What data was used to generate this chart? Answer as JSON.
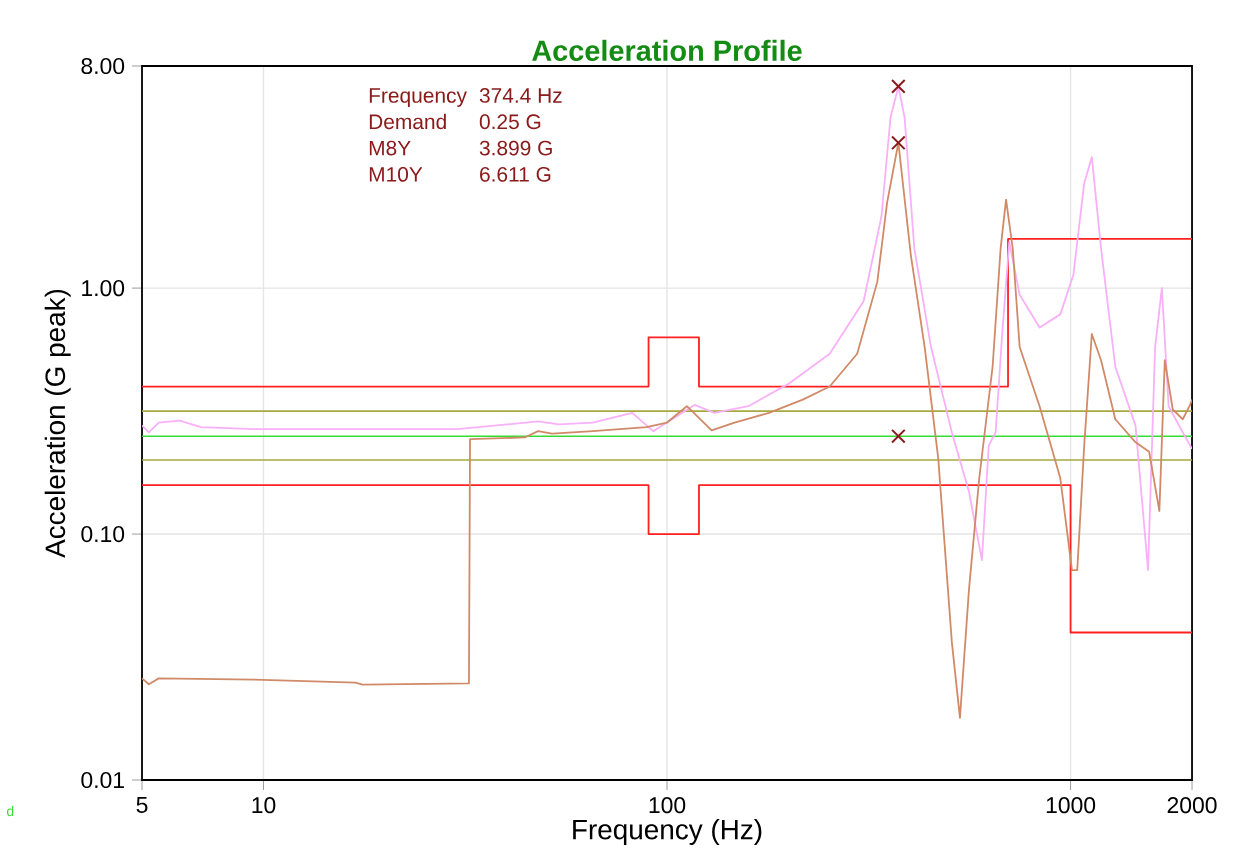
{
  "chart_data": {
    "type": "line",
    "title": "Acceleration Profile",
    "xlabel": "Frequency (Hz)",
    "ylabel": "Acceleration (G peak)",
    "log": "xy",
    "grid": true,
    "xlim": [
      5,
      2000
    ],
    "xticks": [
      5,
      10,
      100,
      1000,
      2000
    ],
    "ylim": [
      0.01,
      8
    ],
    "yticks": [
      0.01,
      {
        "value": 0.1,
        "label": "0.10"
      },
      {
        "value": 1,
        "label": "1.00"
      },
      {
        "value": 8,
        "label": "8.00"
      }
    ],
    "ref_lines": [
      {
        "axis": "y",
        "value": 0.316,
        "color": "#a8a840"
      },
      {
        "axis": "y",
        "value": 0.2,
        "color": "#a8a840"
      },
      {
        "axis": "y",
        "value": 0.25,
        "color": "#33dd33"
      }
    ],
    "series": [
      {
        "type": "step",
        "color": "#ff2020",
        "x": [
          5,
          90,
          120,
          700,
          2000
        ],
        "values": [
          0.398,
          0.631,
          0.398,
          1.585,
          1.585
        ]
      },
      {
        "type": "step",
        "color": "#ff2020",
        "x": [
          5,
          90,
          120,
          1000,
          2000
        ],
        "values": [
          0.158,
          0.1,
          0.158,
          0.0398,
          0.0398
        ]
      },
      {
        "color": "#f8b0f8",
        "x": [
          5,
          5.2,
          5.5,
          6.2,
          7,
          9.5,
          16.9,
          30.2,
          47.9,
          53.9,
          65.5,
          82,
          92.4,
          100,
          117,
          131,
          159,
          201,
          253,
          307,
          340,
          358,
          374.4,
          388,
          410,
          451,
          508,
          560,
          603,
          627,
          652,
          677,
          705,
          748,
          838,
          943,
          1016,
          1081,
          1129,
          1190,
          1291,
          1449,
          1556,
          1620,
          1684,
          1750,
          1897,
          2000
        ],
        "values": [
          0.276,
          0.259,
          0.284,
          0.289,
          0.272,
          0.267,
          0.267,
          0.267,
          0.287,
          0.279,
          0.284,
          0.311,
          0.262,
          0.284,
          0.335,
          0.311,
          0.331,
          0.41,
          0.541,
          0.884,
          1.96,
          4.94,
          6.611,
          4.94,
          1.45,
          0.576,
          0.259,
          0.149,
          0.0783,
          0.229,
          0.259,
          0.651,
          1.54,
          0.94,
          0.692,
          0.782,
          1.13,
          2.67,
          3.41,
          1.45,
          0.479,
          0.276,
          0.0714,
          0.576,
          1.0,
          0.331,
          0.259,
          0.222
        ]
      },
      {
        "color": "#d08a68",
        "x": [
          5,
          5.2,
          5.5,
          9.5,
          16.9,
          17.6,
          32.3,
          32.5,
          44.4,
          47.9,
          51.9,
          65.5,
          89,
          100,
          112,
          129,
          147,
          179,
          217,
          253,
          296,
          332,
          351,
          374.4,
          402,
          435,
          470,
          508,
          532,
          560,
          594,
          641,
          671,
          692,
          719,
          748,
          838,
          943,
          1008,
          1039,
          1081,
          1129,
          1190,
          1291,
          1449,
          1566,
          1660,
          1712,
          1792,
          1897,
          1971,
          2000
        ],
        "values": [
          0.0259,
          0.0245,
          0.0259,
          0.0256,
          0.0249,
          0.0244,
          0.0247,
          0.243,
          0.247,
          0.262,
          0.256,
          0.262,
          0.272,
          0.284,
          0.331,
          0.264,
          0.284,
          0.311,
          0.352,
          0.398,
          0.541,
          1.06,
          2.22,
          3.899,
          1.36,
          0.576,
          0.203,
          0.0363,
          0.0179,
          0.0593,
          0.169,
          0.479,
          1.45,
          2.29,
          1.45,
          0.576,
          0.331,
          0.169,
          0.0714,
          0.0714,
          0.229,
          0.651,
          0.509,
          0.293,
          0.236,
          0.216,
          0.124,
          0.509,
          0.321,
          0.293,
          0.331,
          0.352
        ]
      },
      {
        "type": "scatter",
        "color": "#8b1a1a",
        "marker": "cross",
        "x": [
          374.4,
          374.4,
          374.4
        ],
        "values": [
          6.611,
          3.899,
          0.25
        ]
      }
    ],
    "annotations": [
      "Frequency",
      "374.4 Hz",
      "Demand",
      "0.25 G",
      "M8Y",
      "3.899 G",
      "M10Y",
      "6.611 G",
      "d"
    ]
  }
}
